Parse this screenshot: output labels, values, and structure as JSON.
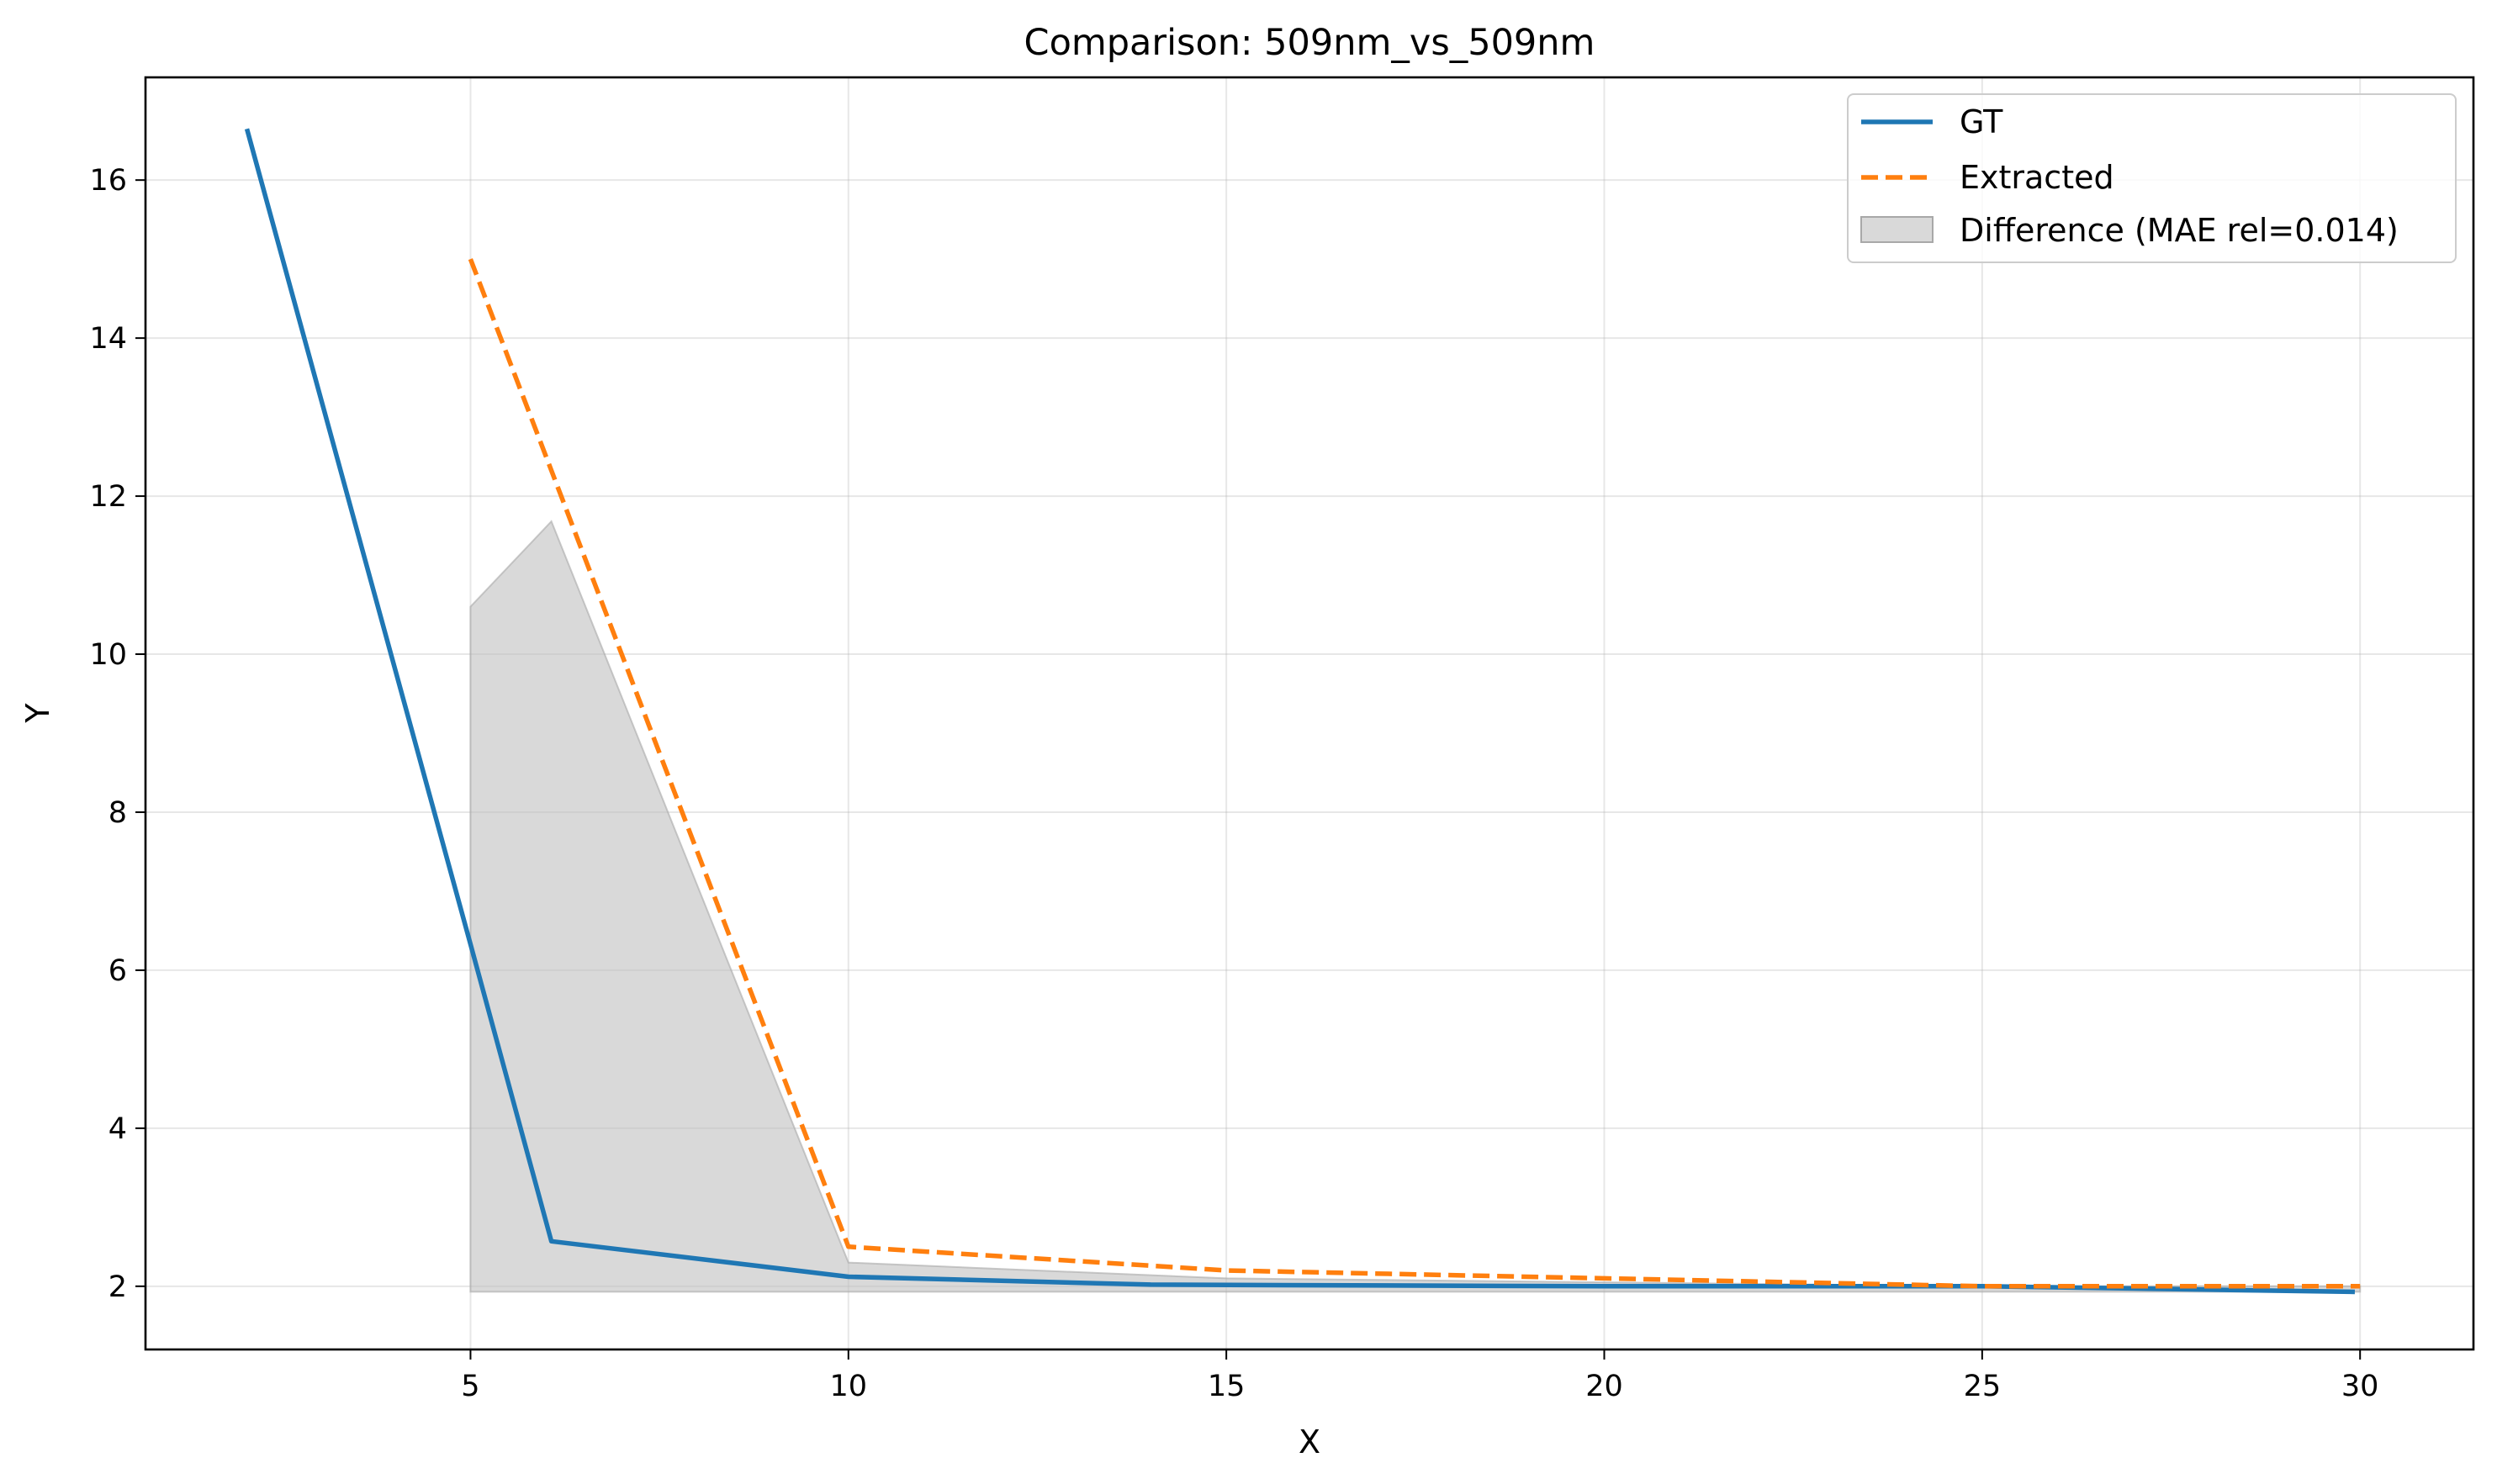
{
  "chart_data": {
    "type": "line",
    "title": "Comparison: 509nm_vs_509nm",
    "xlabel": "X",
    "ylabel": "Y",
    "xlim": [
      0.7,
      31.5
    ],
    "ylim": [
      1.2,
      17.3
    ],
    "xticks": [
      5,
      10,
      15,
      20,
      25,
      30
    ],
    "yticks": [
      2,
      4,
      6,
      8,
      10,
      12,
      14,
      16
    ],
    "grid": true,
    "legend_position": "upper right",
    "series": [
      {
        "name": "GT",
        "style": "solid",
        "color": "#1f77b4",
        "x": [
          2.05,
          5.0,
          6.07,
          10.0,
          14.0,
          20.0,
          25.0,
          29.9
        ],
        "y": [
          16.62,
          6.33,
          2.57,
          2.12,
          2.02,
          2.0,
          2.0,
          1.93
        ]
      },
      {
        "name": "Extracted",
        "style": "dashed",
        "color": "#ff7f0e",
        "x": [
          5.0,
          10.0,
          15.0,
          20.0,
          25.0,
          30.0
        ],
        "y": [
          15.0,
          2.5,
          2.2,
          2.1,
          2.0,
          2.0
        ]
      }
    ],
    "fill": {
      "name": "Difference (MAE rel=0.014)",
      "color": "#bfbfbf",
      "upper": {
        "x": [
          5.0,
          6.07,
          10.0,
          15.0,
          20.0,
          25.0,
          30.0
        ],
        "y": [
          10.6,
          11.68,
          2.3,
          2.1,
          2.05,
          2.0,
          2.0
        ]
      },
      "lower": {
        "x": [
          5.0,
          30.0
        ],
        "y": [
          1.93,
          1.93
        ]
      }
    }
  }
}
